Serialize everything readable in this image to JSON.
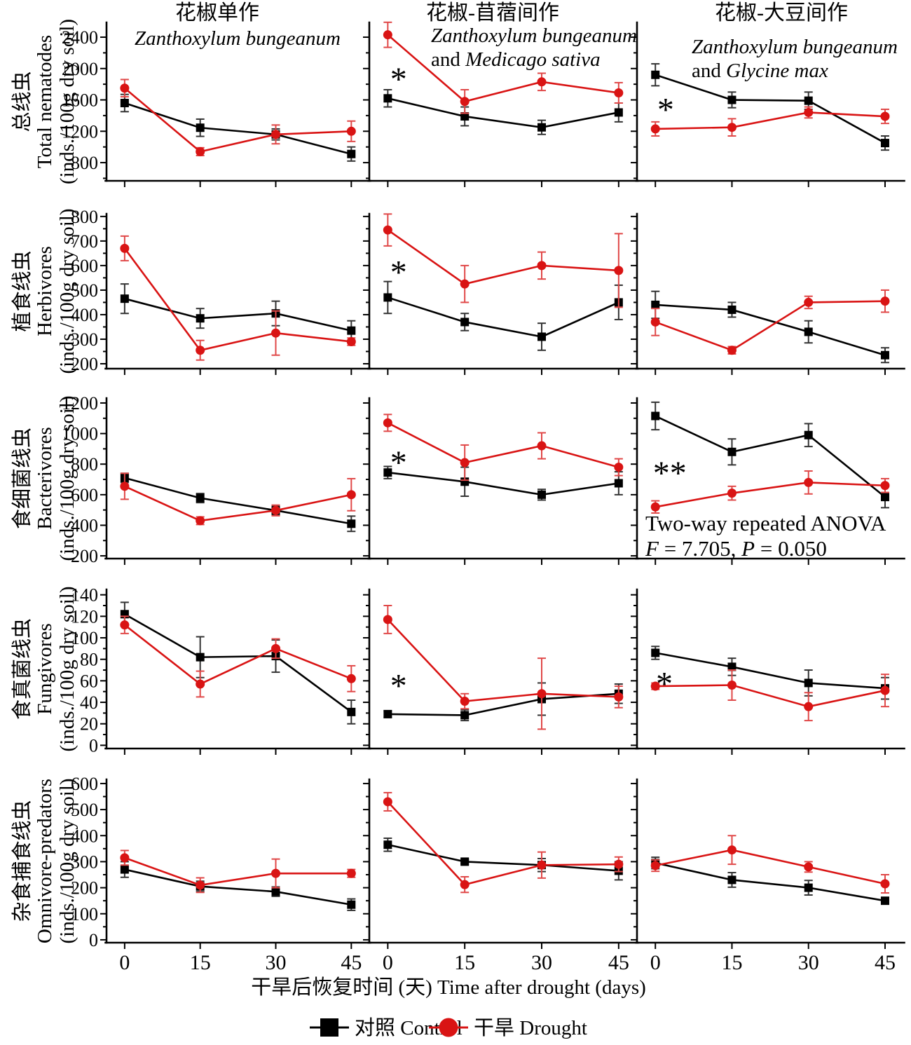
{
  "chart_data": {
    "type": "line",
    "x": [
      0,
      15,
      30,
      45
    ],
    "x_axis_label": "干旱后恢复时间 (天)  Time after drought (days)",
    "legend": [
      {
        "label": "对照 Control",
        "marker": "square",
        "color": "#000000"
      },
      {
        "label": "干旱 Drought",
        "marker": "circle",
        "color": "#d91414"
      }
    ],
    "columns": [
      {
        "title": "花椒单作",
        "subtitle": [
          [
            {
              "t": "Zanthoxylum bungeanum",
              "i": true
            }
          ]
        ]
      },
      {
        "title": "花椒-苜蓿间作",
        "subtitle": [
          [
            {
              "t": "Zanthoxylum bungeanum",
              "i": true
            }
          ],
          [
            {
              "t": "and ",
              "i": false
            },
            {
              "t": "Medicago sativa",
              "i": true
            }
          ]
        ]
      },
      {
        "title": "花椒-大豆间作",
        "subtitle": [
          [
            {
              "t": "Zanthoxylum bungeanum",
              "i": true
            }
          ],
          [
            {
              "t": "and ",
              "i": false
            },
            {
              "t": "Glycine max",
              "i": true
            }
          ]
        ]
      }
    ],
    "rows": [
      {
        "label_cn": "总线虫",
        "label_en": "Total nematodes",
        "unit": "(inds./100g dry soil)",
        "ylim": [
          568,
          2588
        ],
        "yticks": [
          800,
          1200,
          1600,
          2000,
          2400
        ],
        "minor": 200,
        "panels": [
          {
            "control": {
              "v": [
                1560,
                1245,
                1160,
                910
              ],
              "e": [
                110,
                110,
                70,
                90
              ]
            },
            "drought": {
              "v": [
                1750,
                940,
                1160,
                1200
              ],
              "e": [
                110,
                50,
                120,
                130
              ]
            }
          },
          {
            "control": {
              "v": [
                1620,
                1390,
                1250,
                1440
              ],
              "e": [
                110,
                120,
                90,
                120
              ]
            },
            "drought": {
              "v": [
                2430,
                1580,
                1830,
                1690
              ],
              "e": [
                160,
                150,
                110,
                130
              ]
            },
            "sig": {
              "text": "*",
              "fx": 0.078,
              "v": 2000
            }
          },
          {
            "control": {
              "v": [
                1920,
                1600,
                1590,
                1050
              ],
              "e": [
                140,
                100,
                110,
                90
              ]
            },
            "drought": {
              "v": [
                1230,
                1250,
                1440,
                1390
              ],
              "e": [
                90,
                110,
                70,
                90
              ]
            },
            "sig": {
              "text": "*",
              "fx": 0.076,
              "v": 1610
            }
          }
        ]
      },
      {
        "label_cn": "植食线虫",
        "label_en": "Herbivores",
        "unit": "(inds./100g dry soil)",
        "ylim": [
          180,
          811
        ],
        "yticks": [
          200,
          300,
          400,
          500,
          600,
          700,
          800
        ],
        "minor": 50,
        "panels": [
          {
            "control": {
              "v": [
                465,
                385,
                405,
                335
              ],
              "e": [
                60,
                40,
                50,
                40
              ]
            },
            "drought": {
              "v": [
                670,
                255,
                325,
                290
              ],
              "e": [
                50,
                40,
                90,
                15
              ]
            }
          },
          {
            "control": {
              "v": [
                470,
                370,
                310,
                450
              ],
              "e": [
                65,
                35,
                55,
                70
              ]
            },
            "drought": {
              "v": [
                745,
                525,
                600,
                580
              ],
              "e": [
                65,
                75,
                55,
                150
              ]
            },
            "sig": {
              "text": "*",
              "fx": 0.078,
              "v": 615
            }
          },
          {
            "control": {
              "v": [
                440,
                420,
                330,
                235
              ],
              "e": [
                55,
                30,
                45,
                30
              ]
            },
            "drought": {
              "v": [
                370,
                255,
                450,
                455
              ],
              "e": [
                55,
                15,
                25,
                45
              ]
            }
          }
        ]
      },
      {
        "label_cn": "食细菌线虫",
        "label_en": "Bacterivores",
        "unit": "(inds./100g dry soil)",
        "ylim": [
          182,
          1232
        ],
        "yticks": [
          200,
          400,
          600,
          800,
          1000,
          1200
        ],
        "minor": 100,
        "panels": [
          {
            "control": {
              "v": [
                710,
                578,
                497,
                410
              ],
              "e": [
                30,
                30,
                30,
                50
              ]
            },
            "drought": {
              "v": [
                655,
                430,
                497,
                600
              ],
              "e": [
                85,
                25,
                35,
                105
              ]
            }
          },
          {
            "control": {
              "v": [
                745,
                685,
                600,
                675
              ],
              "e": [
                40,
                95,
                35,
                75
              ]
            },
            "drought": {
              "v": [
                1070,
                810,
                920,
                780
              ],
              "e": [
                55,
                115,
                85,
                55
              ]
            },
            "sig": {
              "text": "*",
              "fx": 0.078,
              "v": 880
            }
          },
          {
            "control": {
              "v": [
                1115,
                880,
                990,
                585
              ],
              "e": [
                90,
                85,
                75,
                70
              ]
            },
            "drought": {
              "v": [
                520,
                610,
                680,
                660
              ],
              "e": [
                40,
                45,
                75,
                45
              ]
            },
            "sig": {
              "text": "**",
              "fx": 0.06,
              "v": 810
            },
            "anova": {
              "line1": "Two-way repeated ANOVA",
              "f": "7.705",
              "p": "0.050"
            }
          }
        ]
      },
      {
        "label_cn": "食真菌线虫",
        "label_en": "Fungivores",
        "unit": "(inds./100g dry soil)",
        "ylim": [
          -3,
          145
        ],
        "yticks": [
          0,
          20,
          40,
          60,
          80,
          100,
          120,
          140
        ],
        "minor": 10,
        "panels": [
          {
            "control": {
              "v": [
                122,
                82,
                83,
                31
              ],
              "e": [
                11,
                19,
                15,
                11
              ]
            },
            "drought": {
              "v": [
                112,
                57,
                90,
                62
              ],
              "e": [
                8,
                12,
                9,
                12
              ]
            }
          },
          {
            "control": {
              "v": [
                29,
                28,
                43,
                48
              ],
              "e": [
                3,
                5,
                15,
                9
              ]
            },
            "drought": {
              "v": [
                117,
                41,
                48,
                45
              ],
              "e": [
                13,
                7,
                33,
                10
              ]
            },
            "sig": {
              "text": "*",
              "fx": 0.078,
              "v": 65
            }
          },
          {
            "control": {
              "v": [
                86,
                73,
                58,
                53
              ],
              "e": [
                6,
                8,
                12,
                10
              ]
            },
            "drought": {
              "v": [
                55,
                56,
                36,
                51
              ],
              "e": [
                3,
                14,
                13,
                15
              ]
            },
            "sig": {
              "text": "*",
              "fx": 0.071,
              "v": 67
            }
          }
        ]
      },
      {
        "label_cn": "杂食捕食线虫",
        "label_en": "Omnivore-predators",
        "unit": "(inds./100g dry soil)",
        "ylim": [
          -11,
          616
        ],
        "yticks": [
          0,
          100,
          200,
          300,
          400,
          500,
          600
        ],
        "minor": 50,
        "panels": [
          {
            "control": {
              "v": [
                270,
                205,
                185,
                135
              ],
              "e": [
                30,
                20,
                18,
                22
              ]
            },
            "drought": {
              "v": [
                315,
                210,
                255,
                255
              ],
              "e": [
                28,
                28,
                55,
                15
              ]
            }
          },
          {
            "control": {
              "v": [
                365,
                300,
                287,
                265
              ],
              "e": [
                25,
                8,
                25,
                35
              ]
            },
            "drought": {
              "v": [
                530,
                212,
                287,
                290
              ],
              "e": [
                35,
                30,
                50,
                28
              ]
            }
          },
          {
            "control": {
              "v": [
                295,
                230,
                200,
                150
              ],
              "e": [
                22,
                28,
                28,
                12
              ]
            },
            "drought": {
              "v": [
                285,
                345,
                280,
                215
              ],
              "e": [
                22,
                55,
                20,
                35
              ]
            }
          }
        ]
      }
    ]
  }
}
